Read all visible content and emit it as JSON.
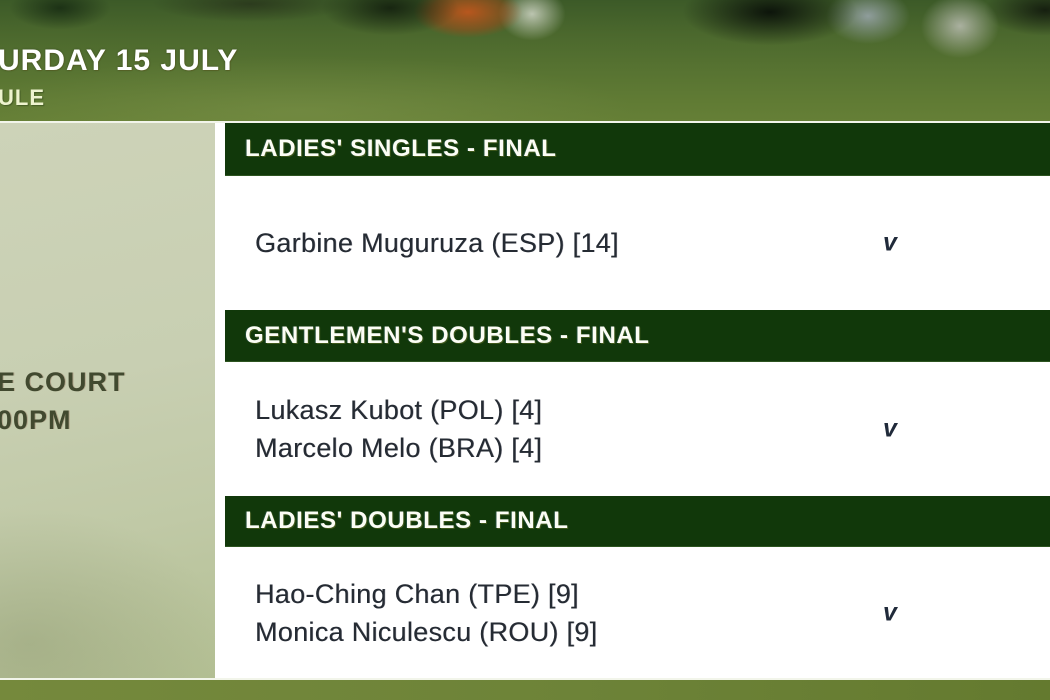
{
  "header": {
    "date_title": "URDAY 15 JULY",
    "subtitle": "ULE"
  },
  "court_panel": {
    "court_name": "E COURT",
    "start_time": "00PM"
  },
  "schedule": {
    "matches": [
      {
        "section": "LADIES' SINGLES - FINAL",
        "players": [
          "Garbine Muguruza (ESP) [14]"
        ],
        "versus": "v"
      },
      {
        "section": "GENTLEMEN'S DOUBLES - FINAL",
        "players": [
          "Lukasz Kubot (POL) [4]",
          "Marcelo Melo (BRA) [4]"
        ],
        "versus": "v"
      },
      {
        "section": "LADIES' DOUBLES - FINAL",
        "players": [
          "Hao-Ching Chan (TPE) [9]",
          "Monica Niculescu (ROU) [9]"
        ],
        "versus": "v"
      }
    ]
  },
  "colors": {
    "section_bar_green": "#11380a",
    "bottom_bar_olive": "#6d8338",
    "court_panel_green": "#c6cdae",
    "player_text": "#252b33",
    "subtitle_cream": "#eef3cf"
  }
}
